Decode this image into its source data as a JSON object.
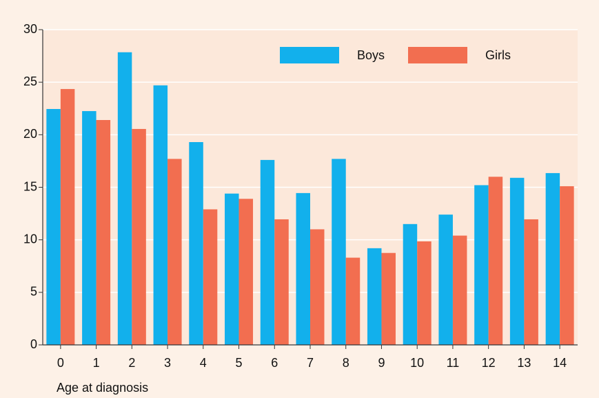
{
  "chart_data": {
    "type": "bar",
    "x_label": "Age at diagnosis",
    "categories": [
      "0",
      "1",
      "2",
      "3",
      "4",
      "5",
      "6",
      "7",
      "8",
      "9",
      "10",
      "11",
      "12",
      "13",
      "14"
    ],
    "series": [
      {
        "name": "Boys",
        "color": "#12b0ec",
        "values": [
          22.45,
          22.25,
          27.85,
          24.7,
          19.3,
          14.4,
          17.6,
          14.45,
          17.7,
          9.2,
          11.5,
          12.4,
          15.2,
          15.9,
          16.35
        ]
      },
      {
        "name": "Girls",
        "color": "#f26e50",
        "values": [
          24.35,
          21.4,
          20.55,
          17.7,
          12.9,
          13.9,
          11.95,
          11.0,
          8.3,
          8.75,
          9.85,
          10.4,
          16.0,
          11.95,
          15.1
        ]
      }
    ],
    "ylim": [
      0,
      30
    ],
    "yticks": [
      0,
      5,
      10,
      15,
      20,
      25,
      30
    ],
    "grid": true,
    "legend": "top-right"
  }
}
